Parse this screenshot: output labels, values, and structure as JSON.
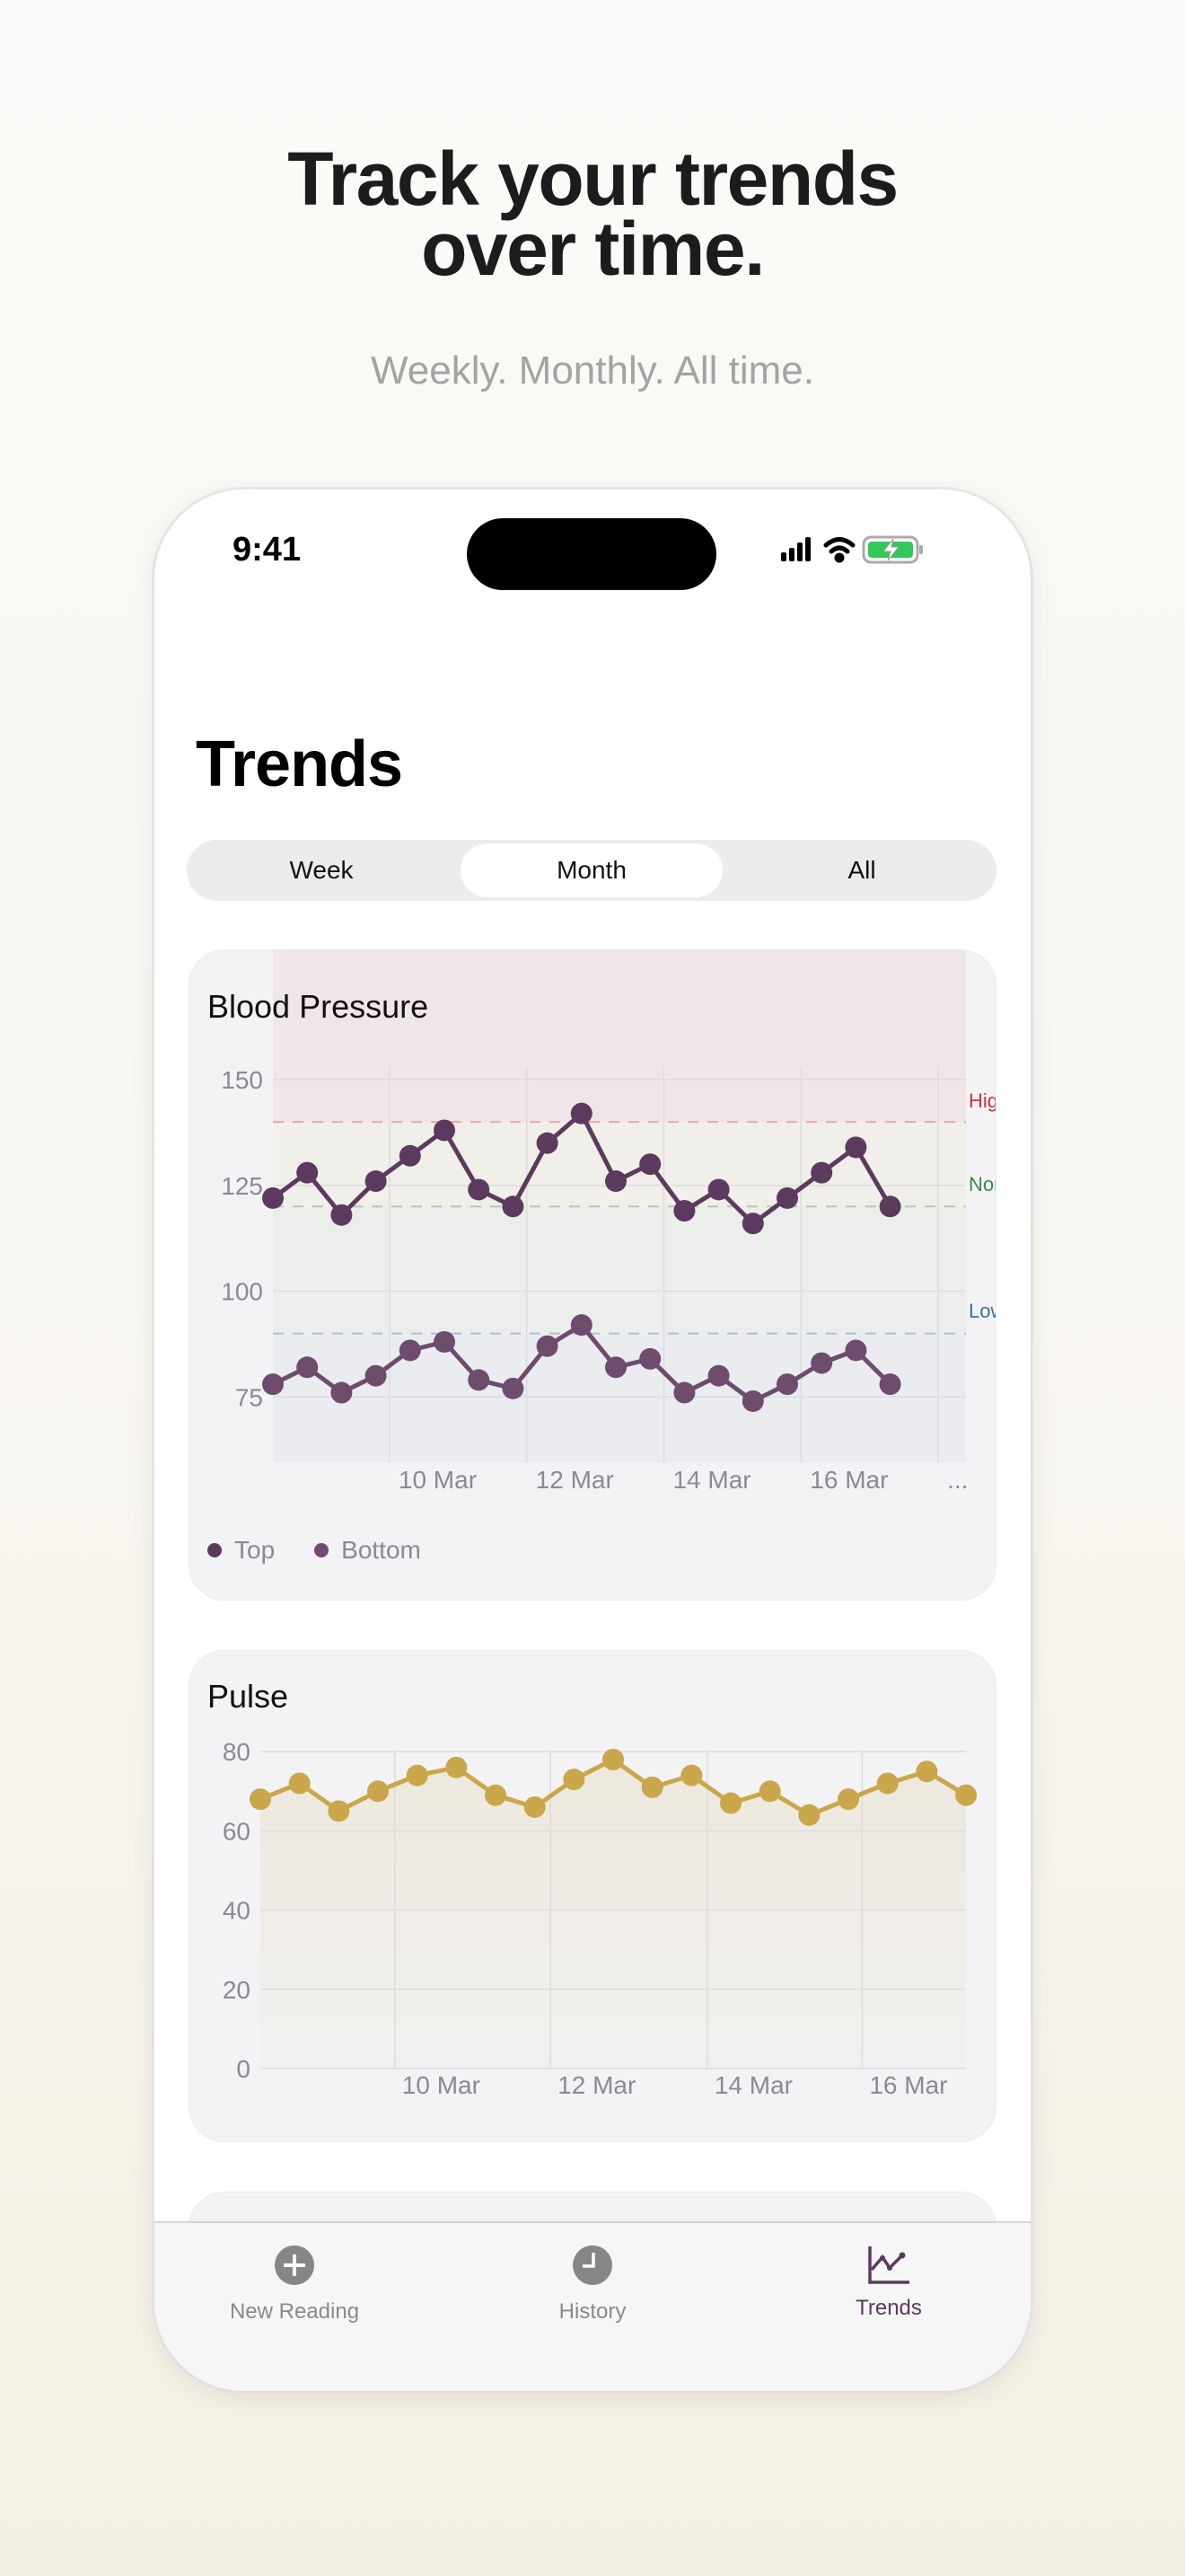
{
  "hero": {
    "title_line1": "Track your trends",
    "title_line2": "over time.",
    "subtitle": "Weekly. Monthly. All time."
  },
  "status_bar": {
    "time": "9:41",
    "icons": [
      "signal-icon",
      "wifi-icon",
      "battery-charging-icon"
    ],
    "battery_color": "#34c759"
  },
  "page_title": "Trends",
  "segments": [
    {
      "label": "Week",
      "selected": false
    },
    {
      "label": "Month",
      "selected": true
    },
    {
      "label": "All",
      "selected": false
    }
  ],
  "chart_data": [
    {
      "type": "line",
      "title": "Blood Pressure",
      "yticks": [
        150,
        125,
        100,
        75
      ],
      "ylim": [
        60,
        180
      ],
      "xtick_labels": [
        "10 Mar",
        "12 Mar",
        "14 Mar",
        "16 Mar",
        "..."
      ],
      "xtick_index": [
        3.4,
        7.4,
        11.4,
        15.4,
        19.4
      ],
      "ranges": [
        {
          "label": "High",
          "threshold": 140,
          "color": "#c8333a",
          "band": "#f1e6e7"
        },
        {
          "label": "Normal",
          "threshold": 120,
          "color": "#3a8a4a",
          "band": "#f1efe9"
        },
        {
          "label": "Low",
          "threshold": 90,
          "color": "#3a6ea5",
          "band": "#eceeec"
        }
      ],
      "low_band": "#eaecf0",
      "series": [
        {
          "name": "Top",
          "color": "#5c3a5e",
          "values": [
            122,
            128,
            118,
            126,
            132,
            138,
            124,
            120,
            135,
            142,
            126,
            130,
            119,
            124,
            116,
            122,
            128,
            134,
            120
          ]
        },
        {
          "name": "Bottom",
          "color": "#6e4c6e",
          "values": [
            78,
            82,
            76,
            80,
            86,
            88,
            79,
            77,
            87,
            92,
            82,
            84,
            76,
            80,
            74,
            78,
            83,
            86,
            78
          ]
        }
      ],
      "legend": "bottom-left",
      "grid": true
    },
    {
      "type": "area",
      "title": "Pulse",
      "yticks": [
        80,
        60,
        40,
        20,
        0
      ],
      "ylim": [
        0,
        80
      ],
      "xtick_labels": [
        "10 Mar",
        "12 Mar",
        "14 Mar",
        "16 Mar"
      ],
      "xtick_index": [
        3.43,
        7.4,
        11.4,
        15.35
      ],
      "series": [
        {
          "color": "#c9a74a",
          "values": [
            68,
            72,
            65,
            70,
            74,
            76,
            69,
            66,
            73,
            78,
            71,
            74,
            67,
            70,
            64,
            68,
            72,
            75,
            69
          ]
        }
      ],
      "grid": true
    }
  ],
  "tabbar": {
    "items": [
      {
        "label": "New Reading",
        "icon": "plus-circle-icon",
        "active": false
      },
      {
        "label": "History",
        "icon": "clock-icon",
        "active": false
      },
      {
        "label": "Trends",
        "icon": "chart-line-icon",
        "active": true
      }
    ],
    "active_color": "#5c3a5e",
    "inactive_color": "#8a8a8a"
  }
}
